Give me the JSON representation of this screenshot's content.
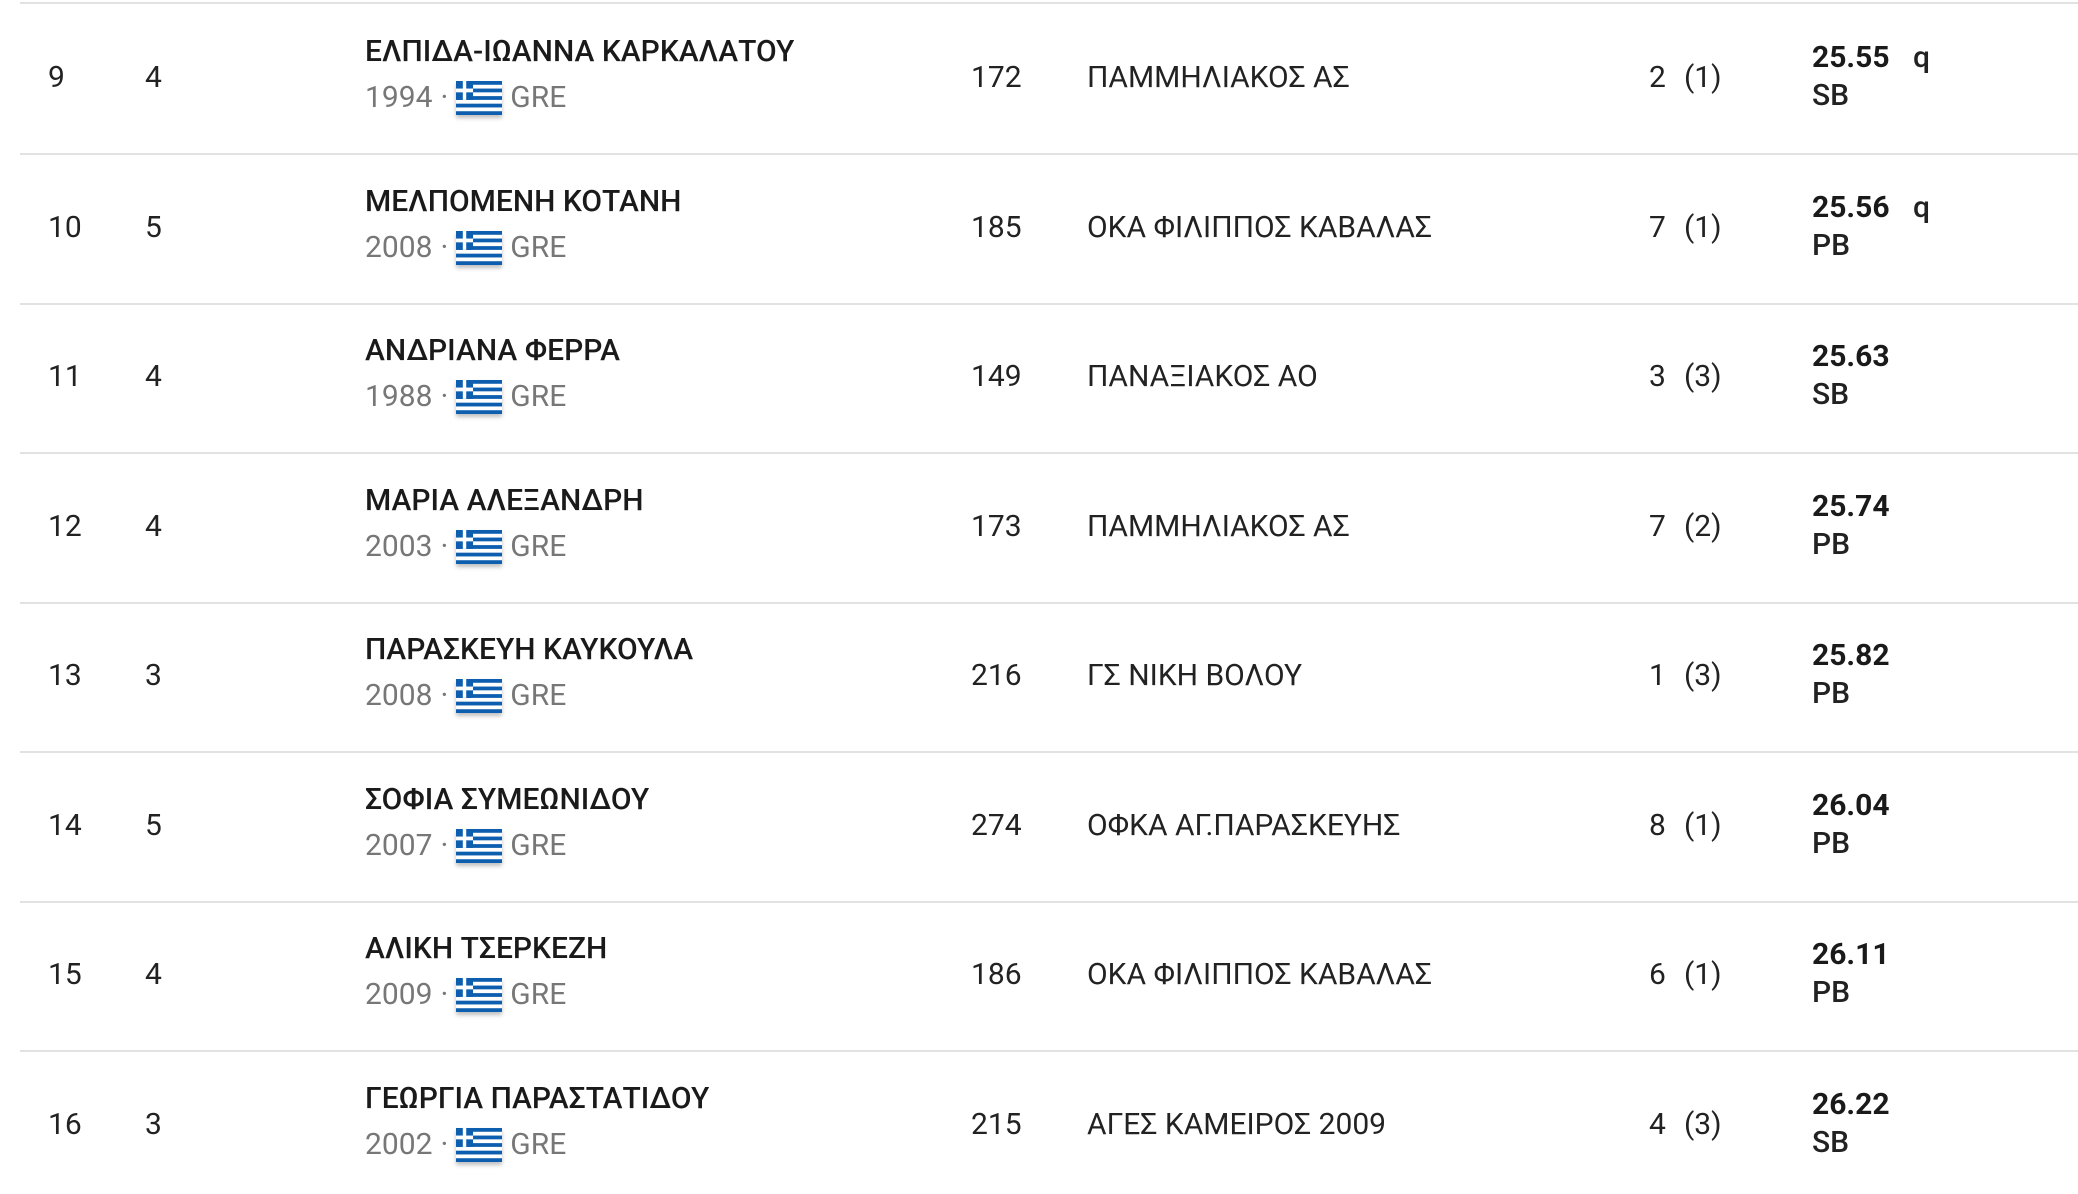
{
  "separator": "·",
  "rows": [
    {
      "rank": "9",
      "heat": "4",
      "name": "ΕΛΠΙΔΑ-ΙΩΑΝΝΑ ΚΑΡΚΑΛΑΤΟΥ",
      "year": "1994",
      "country": "GRE",
      "bib": "172",
      "club": "ΠΑΜΜΗΛΙΑΚΟΣ ΑΣ",
      "lane": "2",
      "pool": "(1)",
      "result": "25.55",
      "qualifier": "q",
      "record": "SB"
    },
    {
      "rank": "10",
      "heat": "5",
      "name": "ΜΕΛΠΟΜΕΝΗ ΚΟΤΑΝΗ",
      "year": "2008",
      "country": "GRE",
      "bib": "185",
      "club": "ΟΚΑ ΦΙΛΙΠΠΟΣ ΚΑΒΑΛΑΣ",
      "lane": "7",
      "pool": "(1)",
      "result": "25.56",
      "qualifier": "q",
      "record": "PB"
    },
    {
      "rank": "11",
      "heat": "4",
      "name": "ΑΝΔΡΙΑΝΑ ΦΕΡΡΑ",
      "year": "1988",
      "country": "GRE",
      "bib": "149",
      "club": "ΠΑΝΑΞΙΑΚΟΣ ΑΟ",
      "lane": "3",
      "pool": "(3)",
      "result": "25.63",
      "record": "SB"
    },
    {
      "rank": "12",
      "heat": "4",
      "name": "ΜΑΡΙΑ ΑΛΕΞΑΝΔΡΗ",
      "year": "2003",
      "country": "GRE",
      "bib": "173",
      "club": "ΠΑΜΜΗΛΙΑΚΟΣ ΑΣ",
      "lane": "7",
      "pool": "(2)",
      "result": "25.74",
      "record": "PB"
    },
    {
      "rank": "13",
      "heat": "3",
      "name": "ΠΑΡΑΣΚΕΥΗ ΚΑΥΚΟΥΛΑ",
      "year": "2008",
      "country": "GRE",
      "bib": "216",
      "club": "ΓΣ ΝΙΚΗ ΒΟΛΟΥ",
      "lane": "1",
      "pool": "(3)",
      "result": "25.82",
      "record": "PB"
    },
    {
      "rank": "14",
      "heat": "5",
      "name": "ΣΟΦΙΑ ΣΥΜΕΩΝΙΔΟΥ",
      "year": "2007",
      "country": "GRE",
      "bib": "274",
      "club": "ΟΦΚΑ ΑΓ.ΠΑΡΑΣΚΕΥΗΣ",
      "lane": "8",
      "pool": "(1)",
      "result": "26.04",
      "record": "PB"
    },
    {
      "rank": "15",
      "heat": "4",
      "name": "ΑΛΙΚΗ ΤΣΕΡΚΕΖΗ",
      "year": "2009",
      "country": "GRE",
      "bib": "186",
      "club": "ΟΚΑ ΦΙΛΙΠΠΟΣ ΚΑΒΑΛΑΣ",
      "lane": "6",
      "pool": "(1)",
      "result": "26.11",
      "record": "PB"
    },
    {
      "rank": "16",
      "heat": "3",
      "name": "ΓΕΩΡΓΙΑ ΠΑΡΑΣΤΑΤΙΔΟΥ",
      "year": "2002",
      "country": "GRE",
      "bib": "215",
      "club": "ΑΓΕΣ ΚΑΜΕΙΡΟΣ 2009",
      "lane": "4",
      "pool": "(3)",
      "result": "26.22",
      "record": "SB"
    }
  ]
}
